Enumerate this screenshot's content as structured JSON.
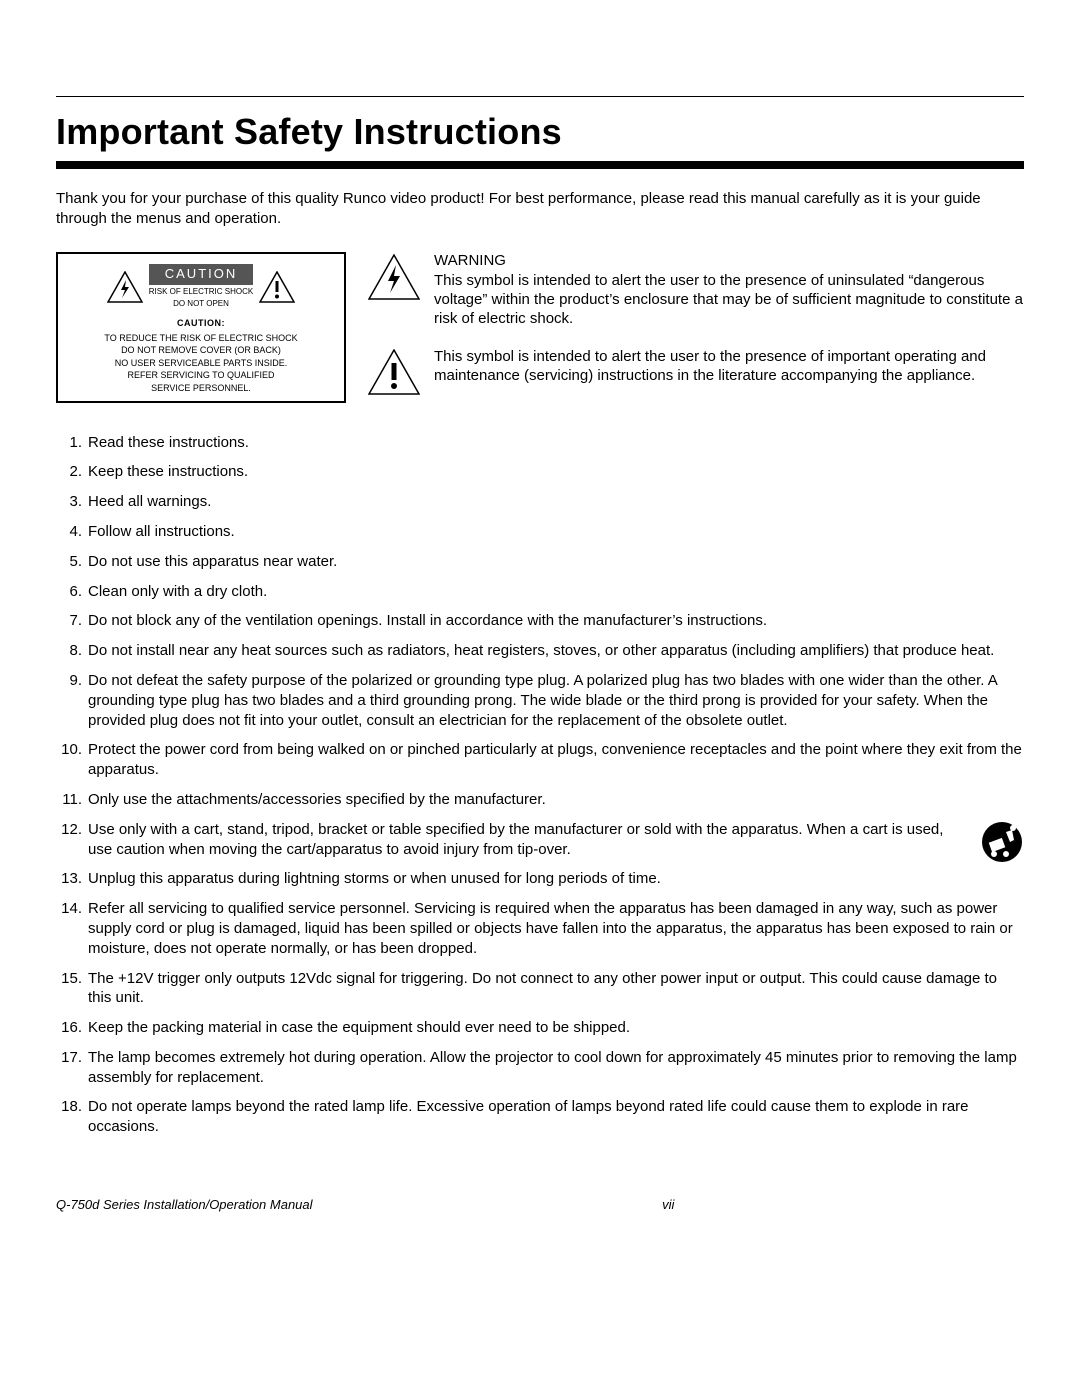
{
  "title": "Important Safety Instructions",
  "intro": "Thank you for your purchase of this quality Runco video product! For best performance, please read this manual carefully as it is your guide through the menus and operation.",
  "caution_card": {
    "label": "CAUTION",
    "sub1": "RISK OF ELECTRIC SHOCK",
    "sub2": "DO NOT OPEN",
    "body_title": "CAUTION:",
    "body_lines": [
      "TO REDUCE THE RISK OF ELECTRIC SHOCK",
      "DO NOT REMOVE COVER (OR BACK)",
      "NO USER SERVICEABLE PARTS INSIDE.",
      "REFER SERVICING TO QUALIFIED",
      "SERVICE PERSONNEL."
    ]
  },
  "warning": {
    "heading": "WARNING",
    "bolt_text": "This symbol is intended to alert the user to the presence of uninsulated “dangerous voltage” within the product’s enclosure that may be of sufficient magnitude to constitute a risk of electric shock.",
    "excl_text": "This symbol is intended to alert the user to the presence of important operating and maintenance (servicing) instructions in the literature accompanying the appliance."
  },
  "instructions": [
    "Read these instructions.",
    "Keep these instructions.",
    "Heed all warnings.",
    "Follow all instructions.",
    "Do not use this apparatus near water.",
    "Clean only with a dry cloth.",
    "Do not block any of the ventilation openings. Install in accordance with the manufacturer’s instructions.",
    "Do not install near any heat sources such as radiators, heat registers, stoves, or other apparatus (including amplifiers) that produce heat.",
    "Do not defeat the safety purpose of the polarized or grounding type plug. A polarized plug has two blades with one wider than the other. A grounding type plug has two blades and a third grounding prong. The wide blade or the third prong is provided for your safety. When the provided plug does not fit into your outlet, consult an electrician for the replacement of the obsolete outlet.",
    "Protect the power cord from being walked on or pinched particularly at plugs, convenience receptacles and the point where they exit from the apparatus.",
    "Only use the attachments/accessories specified by the manufacturer.",
    "Use only with a cart, stand, tripod, bracket or table specified by the manufacturer or sold with the apparatus. When a cart is used, use caution when moving the cart/apparatus to avoid injury from tip-over.",
    "Unplug this apparatus during lightning storms or when unused for long periods of time.",
    "Refer all servicing to qualified service personnel. Servicing is required when the apparatus has been damaged in any way, such as power supply cord or plug is damaged, liquid has been spilled or objects have fallen into the apparatus, the apparatus has been exposed to rain or moisture, does not operate normally, or has been dropped.",
    "The +12V trigger only outputs 12Vdc signal for triggering. Do not connect to any other power input or output. This could cause damage to this unit.",
    "Keep the packing material in case the equipment should ever need to be shipped.",
    "The lamp becomes extremely hot during operation. Allow the projector to cool down for approximately 45 minutes prior to removing the lamp assembly for replacement.",
    "Do not operate lamps beyond the rated lamp life. Excessive operation of lamps beyond rated life could cause them to explode in rare occasions."
  ],
  "tipover_item_index": 11,
  "footer": {
    "left": "Q-750d Series Installation/Operation Manual",
    "page": "vii"
  },
  "colors": {
    "text": "#000000",
    "bg": "#ffffff",
    "caution_bg": "#555555"
  }
}
